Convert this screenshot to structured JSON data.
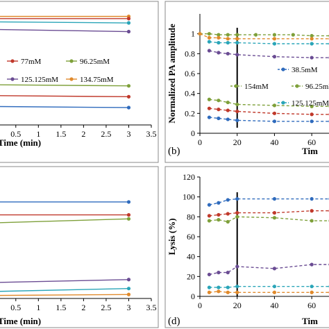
{
  "colors": [
    "#2f6bbd",
    "#c0392b",
    "#7ea03a",
    "#6a4c93",
    "#2aa5b8",
    "#e08a2c",
    "#000000"
  ],
  "chart_data": [
    {
      "id": "a",
      "type": "line",
      "panel_label": "",
      "xlabel": "Time (min)",
      "ylabel": "",
      "xlim": [
        0,
        3.5
      ],
      "ylim": [
        0,
        1.1
      ],
      "xticks": [
        "0.5",
        "1",
        "1.5",
        "2",
        "2.5",
        "3",
        "3.5"
      ],
      "x": [
        0,
        3
      ],
      "series": [
        {
          "name": "",
          "color": "#e08a2c",
          "values": [
            1.0,
            1.0
          ]
        },
        {
          "name": "",
          "color": "#c0392b",
          "values": [
            0.98,
            0.98
          ]
        },
        {
          "name": "",
          "color": "#2aa5b8",
          "values": [
            0.95,
            0.94
          ]
        },
        {
          "name": "",
          "color": "#6a4c93",
          "values": [
            0.88,
            0.86
          ]
        },
        {
          "name": "",
          "color": "#7ea03a",
          "values": [
            0.37,
            0.36
          ]
        },
        {
          "name": "",
          "color": "#c0392b",
          "values": [
            0.27,
            0.26
          ]
        },
        {
          "name": "",
          "color": "#2f6bbd",
          "values": [
            0.17,
            0.16
          ]
        }
      ],
      "legend": [
        {
          "name": "77mM",
          "color": "#c0392b"
        },
        {
          "name": "96.25mM",
          "color": "#7ea03a"
        },
        {
          "name": "125.125mM",
          "color": "#6a4c93"
        },
        {
          "name": "134.75mM",
          "color": "#e08a2c"
        }
      ]
    },
    {
      "id": "b",
      "type": "line",
      "panel_label": "(b)",
      "xlabel": "Tim",
      "ylabel": "Normalized PA amplitude",
      "xlim": [
        0,
        70
      ],
      "ylim": [
        0,
        1.2
      ],
      "xticks": [
        "0",
        "20",
        "40",
        "60"
      ],
      "yticks": [
        "0",
        "0.2",
        "0.4",
        "0.6",
        "0.8",
        "1"
      ],
      "vline_x": 20,
      "series": [
        {
          "name": "",
          "color": "#7ea03a",
          "x": [
            0,
            5,
            10,
            15,
            20,
            30,
            40,
            50,
            60,
            70
          ],
          "values": [
            1.0,
            1.0,
            0.99,
            0.99,
            0.99,
            0.99,
            0.99,
            0.99,
            0.98,
            0.98
          ]
        },
        {
          "name": "",
          "color": "#e08a2c",
          "x": [
            0,
            5,
            10,
            15,
            20,
            40,
            60,
            70
          ],
          "values": [
            1.0,
            0.96,
            0.96,
            0.95,
            0.95,
            0.95,
            0.95,
            0.95
          ]
        },
        {
          "name": "",
          "color": "#2aa5b8",
          "x": [
            5,
            10,
            15,
            20,
            40,
            60,
            70
          ],
          "values": [
            0.92,
            0.91,
            0.91,
            0.91,
            0.9,
            0.9,
            0.9
          ]
        },
        {
          "name": "",
          "color": "#6a4c93",
          "x": [
            5,
            10,
            15,
            20,
            40,
            60,
            70
          ],
          "values": [
            0.83,
            0.81,
            0.8,
            0.79,
            0.77,
            0.76,
            0.76
          ]
        },
        {
          "name": "",
          "color": "#7ea03a",
          "x": [
            5,
            10,
            15,
            20,
            40,
            60,
            70
          ],
          "values": [
            0.34,
            0.33,
            0.31,
            0.29,
            0.28,
            0.27,
            0.27
          ]
        },
        {
          "name": "",
          "color": "#c0392b",
          "x": [
            5,
            10,
            15,
            20,
            40,
            60,
            70
          ],
          "values": [
            0.25,
            0.24,
            0.23,
            0.22,
            0.2,
            0.19,
            0.19
          ]
        },
        {
          "name": "",
          "color": "#2f6bbd",
          "x": [
            5,
            10,
            15,
            20,
            40,
            60,
            70
          ],
          "values": [
            0.16,
            0.15,
            0.14,
            0.13,
            0.12,
            0.12,
            0.12
          ]
        }
      ],
      "legend": [
        {
          "name": "38.5mM",
          "color": "#2f6bbd"
        },
        {
          "name": "154mM",
          "color": "#7ea03a"
        },
        {
          "name": "96.25mM",
          "color": "#7ea03a"
        },
        {
          "name": "125.125mM",
          "color": "#2aa5b8"
        }
      ]
    },
    {
      "id": "c",
      "type": "line",
      "panel_label": "",
      "xlabel": "Time (min)",
      "ylabel": "",
      "xlim": [
        0,
        3.5
      ],
      "ylim": [
        0,
        120
      ],
      "xticks": [
        "0.5",
        "1",
        "1.5",
        "2",
        "2.5",
        "3",
        "3.5"
      ],
      "x": [
        0,
        3
      ],
      "series": [
        {
          "name": "",
          "color": "#2f6bbd",
          "values": [
            97,
            97
          ]
        },
        {
          "name": "",
          "color": "#c0392b",
          "values": [
            84,
            84
          ]
        },
        {
          "name": "",
          "color": "#7ea03a",
          "values": [
            76,
            80
          ]
        },
        {
          "name": "",
          "color": "#6a4c93",
          "values": [
            16,
            19
          ]
        },
        {
          "name": "",
          "color": "#2aa5b8",
          "values": [
            7,
            10
          ]
        },
        {
          "name": "",
          "color": "#e08a2c",
          "values": [
            3,
            4
          ]
        }
      ]
    },
    {
      "id": "d",
      "type": "line",
      "panel_label": "(d)",
      "xlabel": "Tim",
      "ylabel": "Lysis (%)",
      "xlim": [
        0,
        70
      ],
      "ylim": [
        0,
        120
      ],
      "xticks": [
        "0",
        "20",
        "40",
        "60"
      ],
      "yticks": [
        "0",
        "20",
        "40",
        "60",
        "80",
        "100",
        "120"
      ],
      "vline_x": 20,
      "series": [
        {
          "name": "",
          "color": "#2f6bbd",
          "x": [
            5,
            10,
            15,
            20,
            40,
            60,
            70
          ],
          "values": [
            92,
            94,
            97,
            98,
            98,
            98,
            98
          ]
        },
        {
          "name": "",
          "color": "#c0392b",
          "x": [
            5,
            10,
            15,
            20,
            40,
            60,
            70
          ],
          "values": [
            81,
            82,
            83,
            84,
            84,
            86,
            86
          ]
        },
        {
          "name": "",
          "color": "#7ea03a",
          "x": [
            5,
            10,
            15,
            20,
            40,
            60,
            70
          ],
          "values": [
            76,
            77,
            75,
            80,
            79,
            76,
            76
          ]
        },
        {
          "name": "",
          "color": "#6a4c93",
          "x": [
            5,
            10,
            15,
            20,
            40,
            60,
            70
          ],
          "values": [
            22,
            24,
            24,
            30,
            28,
            32,
            32
          ]
        },
        {
          "name": "",
          "color": "#2aa5b8",
          "x": [
            5,
            10,
            15,
            20,
            40,
            60,
            70
          ],
          "values": [
            9,
            9,
            9,
            10,
            10,
            10,
            10
          ]
        },
        {
          "name": "",
          "color": "#e08a2c",
          "x": [
            5,
            10,
            15,
            20,
            40,
            60,
            70
          ],
          "values": [
            4,
            5,
            4,
            4,
            4,
            4,
            4
          ]
        }
      ]
    }
  ]
}
